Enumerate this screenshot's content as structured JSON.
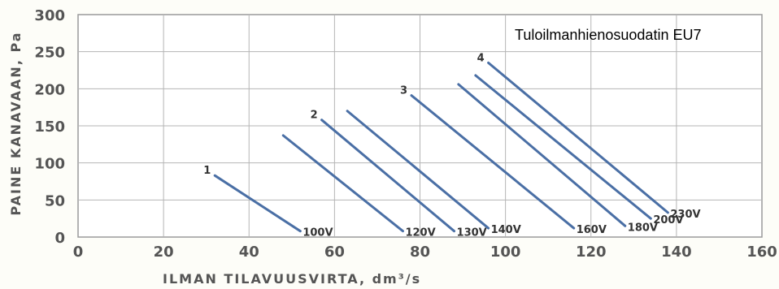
{
  "chart_data": {
    "type": "line",
    "title": "Tuloilmanhienosuodatin EU7",
    "xlabel": "ILMAN TILAVUUSVIRTA, dm³/s",
    "ylabel": "PAINE KANAVAAN, Pa",
    "xlim": [
      0,
      160
    ],
    "ylim": [
      0,
      300
    ],
    "xticks": [
      "0",
      "20",
      "40",
      "60",
      "80",
      "100",
      "120",
      "140",
      "160"
    ],
    "yticks": [
      "0",
      "50",
      "100",
      "150",
      "200",
      "250",
      "300"
    ],
    "grid": true,
    "line_color": "#4a6fa5",
    "series": [
      {
        "name": "100V",
        "curve_number": "1",
        "x": [
          32,
          52
        ],
        "y": [
          83,
          8
        ]
      },
      {
        "name": "120V",
        "curve_number": "",
        "x": [
          48,
          76
        ],
        "y": [
          137,
          8
        ]
      },
      {
        "name": "130V",
        "curve_number": "2",
        "x": [
          57,
          88
        ],
        "y": [
          158,
          8
        ]
      },
      {
        "name": "140V",
        "curve_number": "",
        "x": [
          63,
          96
        ],
        "y": [
          170,
          12
        ]
      },
      {
        "name": "160V",
        "curve_number": "3",
        "x": [
          78,
          116
        ],
        "y": [
          191,
          12
        ]
      },
      {
        "name": "180V",
        "curve_number": "",
        "x": [
          89,
          128
        ],
        "y": [
          206,
          15
        ]
      },
      {
        "name": "200V",
        "curve_number": "",
        "x": [
          93,
          134
        ],
        "y": [
          218,
          25
        ]
      },
      {
        "name": "230V",
        "curve_number": "4",
        "x": [
          96,
          138
        ],
        "y": [
          235,
          33
        ]
      }
    ]
  }
}
